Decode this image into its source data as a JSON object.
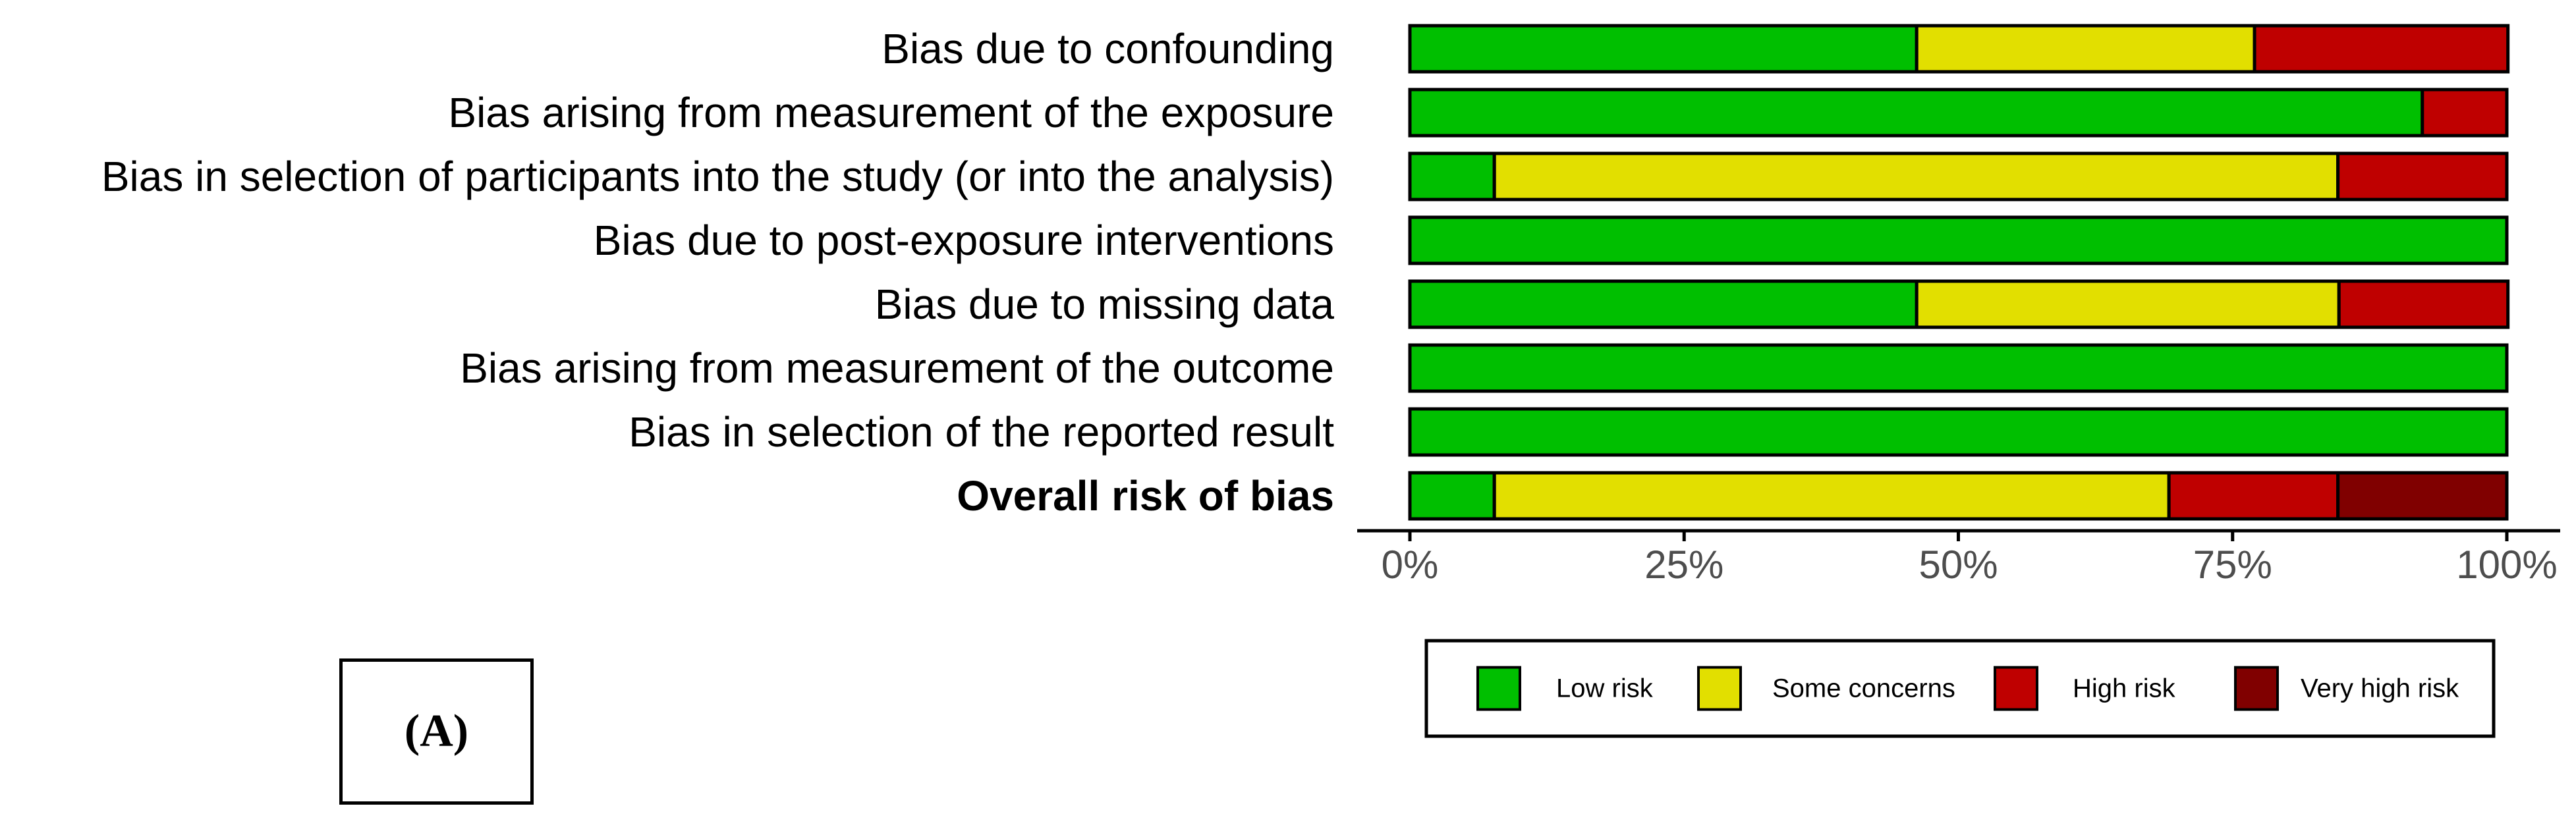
{
  "panel_label": "(A)",
  "chart_data": {
    "type": "bar",
    "orientation": "horizontal",
    "stacked": true,
    "percent_scale": true,
    "title": "",
    "xlabel": "",
    "ylabel": "",
    "xlim": [
      0,
      100
    ],
    "x_ticks": [
      "0%",
      "25%",
      "50%",
      "75%",
      "100%"
    ],
    "x_tick_values": [
      0,
      25,
      50,
      75,
      100
    ],
    "grid": false,
    "legend_position": "bottom",
    "categories": [
      "Bias due to confounding",
      "Bias arising from measurement of the exposure",
      "Bias in selection of participants into the study (or into the analysis)",
      "Bias due to post-exposure interventions",
      "Bias due to missing data",
      "Bias arising from measurement of the outcome",
      "Bias in selection of the reported result",
      "Overall risk of bias"
    ],
    "bold_categories": [
      "Overall risk of bias"
    ],
    "series": [
      {
        "name": "Low risk",
        "color": "#00BF00",
        "values": [
          46.2,
          92.3,
          7.7,
          100,
          46.2,
          100,
          100,
          7.7
        ]
      },
      {
        "name": "Some concerns",
        "color": "#E2DF00",
        "values": [
          30.8,
          0,
          76.9,
          0,
          38.5,
          0,
          0,
          61.5
        ]
      },
      {
        "name": "High risk",
        "color": "#BF0000",
        "values": [
          23.1,
          7.7,
          15.4,
          0,
          15.4,
          0,
          0,
          15.4
        ]
      },
      {
        "name": "Very high risk",
        "color": "#800000",
        "values": [
          0,
          0,
          0,
          0,
          0,
          0,
          0,
          15.4
        ]
      }
    ]
  }
}
